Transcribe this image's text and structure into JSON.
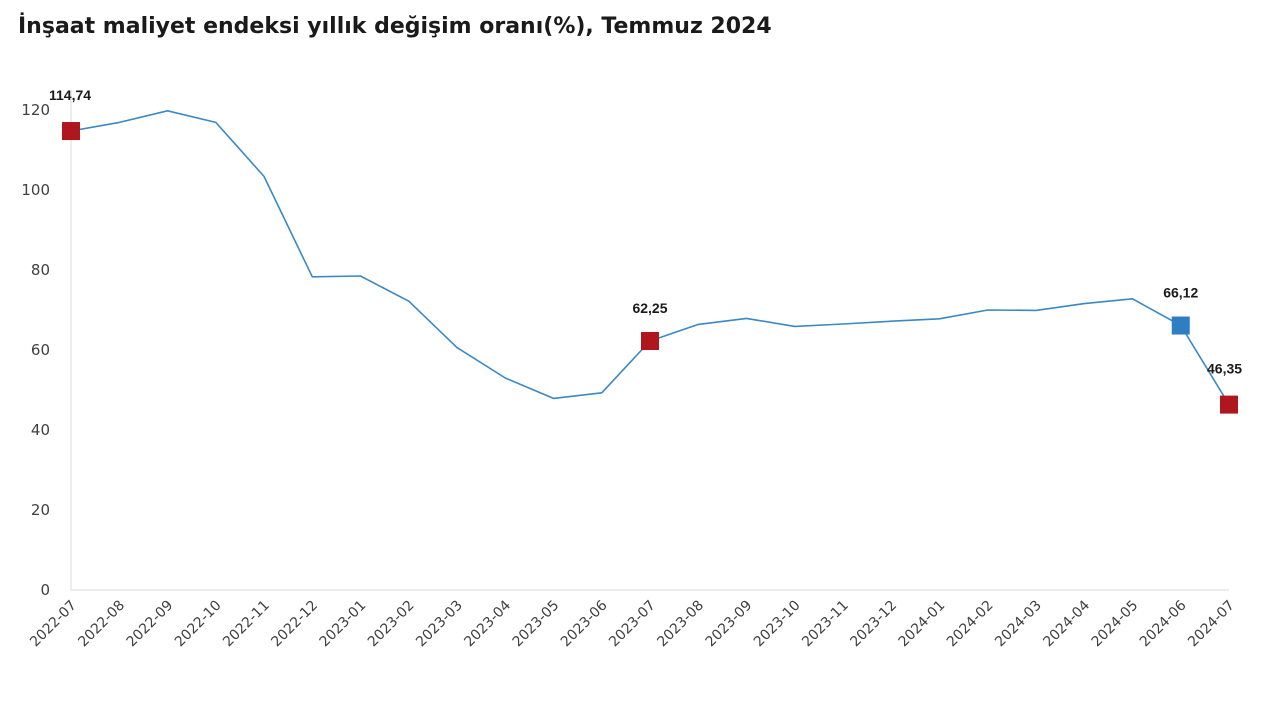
{
  "chart_data": {
    "type": "line",
    "title": "İnşaat maliyet endeksi yıllık değişim oranı(%), Temmuz 2024",
    "xlabel": "",
    "ylabel": "",
    "ylim": [
      0,
      120
    ],
    "yticks": [
      0,
      20,
      40,
      60,
      80,
      100,
      120
    ],
    "grid": false,
    "legend": "none",
    "categories": [
      "2022-07",
      "2022-08",
      "2022-09",
      "2022-10",
      "2022-11",
      "2022-12",
      "2023-01",
      "2023-02",
      "2023-03",
      "2023-04",
      "2023-05",
      "2023-06",
      "2023-07",
      "2023-08",
      "2023-09",
      "2023-10",
      "2023-11",
      "2023-12",
      "2024-01",
      "2024-02",
      "2024-03",
      "2024-04",
      "2024-05",
      "2024-06",
      "2024-07"
    ],
    "series": [
      {
        "values": [
          114.74,
          116.9,
          119.8,
          116.9,
          103.4,
          78.3,
          78.5,
          72.2,
          60.6,
          53.0,
          47.9,
          49.3,
          62.25,
          66.4,
          67.9,
          65.9,
          66.5,
          67.2,
          67.8,
          70.0,
          69.9,
          71.6,
          72.8,
          66.12,
          46.35
        ],
        "color": "#3a89c4"
      }
    ],
    "annotations": [
      {
        "category": "2022-07",
        "value": 114.74,
        "label": "114,74",
        "marker_color": "#b0161e"
      },
      {
        "category": "2023-07",
        "value": 62.25,
        "label": "62,25",
        "marker_color": "#b0161e"
      },
      {
        "category": "2024-06",
        "value": 66.12,
        "label": "66,12",
        "marker_color": "#2f7ec3"
      },
      {
        "category": "2024-07",
        "value": 46.35,
        "label": "46,35",
        "marker_color": "#b0161e"
      }
    ]
  }
}
